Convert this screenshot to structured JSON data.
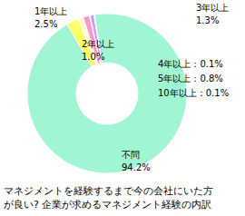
{
  "chart_data": {
    "type": "pie",
    "title": "マネジメントを経験するまで今の会社にいた方が良い? 企業が求めるマネジメント経験の内訳",
    "categories": [
      "1年以上",
      "2年以上",
      "3年以上",
      "4年以上",
      "5年以上",
      "10年以上",
      "不問"
    ],
    "values": [
      2.5,
      1.0,
      1.3,
      0.1,
      0.8,
      0.1,
      94.2
    ],
    "value_labels": [
      "2.5%",
      "1.0%",
      "1.3%",
      "：0.1%",
      "：0.8%",
      "：0.1%",
      "94.2%"
    ],
    "colors": [
      "#ffff66",
      "#ffffcc",
      "#ff99cc",
      "#ff66cc",
      "#cc99ff",
      "#ff3399",
      "#a0f5d2"
    ],
    "data_labels": true
  }
}
